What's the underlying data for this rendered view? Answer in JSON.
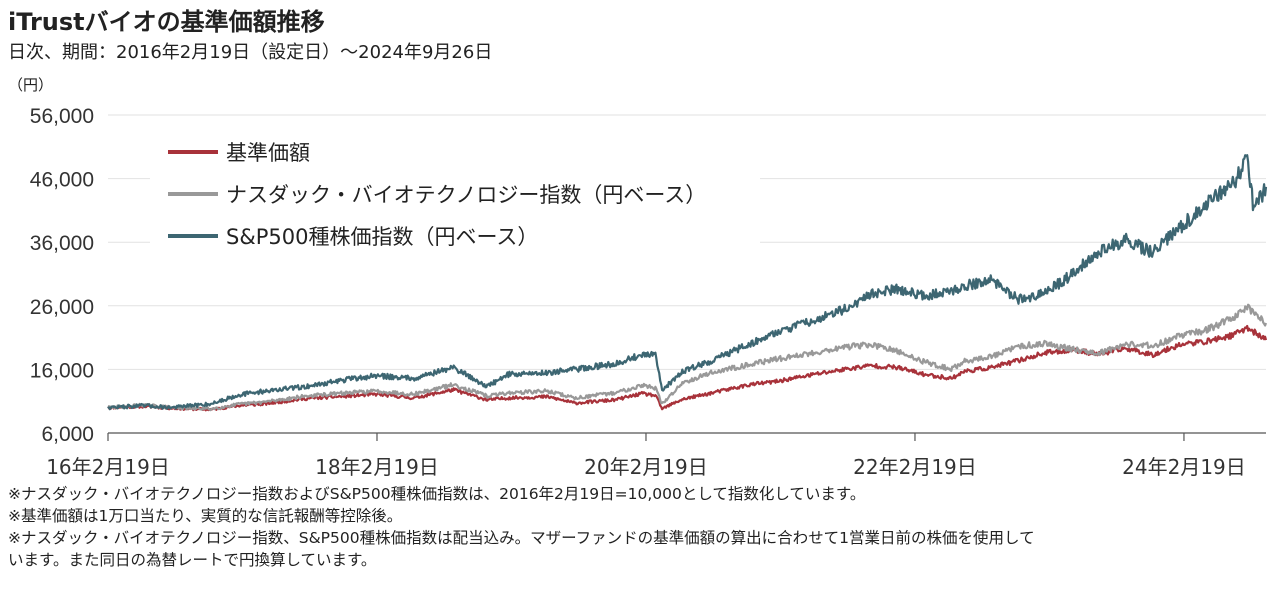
{
  "title": "iTrustバイオの基準価額推移",
  "subtitle": "日次、期間：2016年2月19日（設定日）～2024年9月26日",
  "unit_label": "（円）",
  "notes": [
    "※ナスダック・バイオテクノロジー指数およびS&P500種株価指数は、2016年2月19日=10,000として指数化しています。",
    "※基準価額は1万口当たり、実質的な信託報酬等控除後。",
    "※ナスダック・バイオテクノロジー指数、S&P500種株価指数は配当込み。マザーファンドの基準価額の算出に合わせて1営業日前の株価を使用して",
    "います。また同日の為替レートで円換算しています。"
  ],
  "chart_data": {
    "type": "line",
    "ylim": [
      6000,
      56000
    ],
    "xlim": [
      2016.13,
      2024.74
    ],
    "yticks": [
      6000,
      16000,
      26000,
      36000,
      46000,
      56000
    ],
    "ytick_labels": [
      "6,000",
      "16,000",
      "26,000",
      "36,000",
      "46,000",
      "56,000"
    ],
    "xticks": [
      2016.13,
      2018.13,
      2020.13,
      2022.13,
      2024.13
    ],
    "xtick_labels": [
      "16年2月19日",
      "18年2月19日",
      "20年2月19日",
      "22年2月19日",
      "24年2月19日"
    ],
    "grid": true,
    "legend_position": "top-left",
    "series": [
      {
        "name": "基準価額",
        "color": "#a8323a",
        "x": [
          2016.13,
          2016.4,
          2016.6,
          2016.9,
          2017.1,
          2017.3,
          2017.6,
          2017.9,
          2018.13,
          2018.4,
          2018.7,
          2018.95,
          2019.1,
          2019.4,
          2019.6,
          2019.9,
          2020.1,
          2020.2,
          2020.25,
          2020.4,
          2020.6,
          2020.9,
          2021.1,
          2021.4,
          2021.6,
          2021.8,
          2022.0,
          2022.2,
          2022.4,
          2022.5,
          2022.7,
          2022.9,
          2023.1,
          2023.3,
          2023.5,
          2023.7,
          2023.9,
          2024.1,
          2024.3,
          2024.5,
          2024.6,
          2024.74
        ],
        "values": [
          10000,
          10200,
          9900,
          9700,
          10300,
          10600,
          11400,
          11800,
          12100,
          11500,
          12800,
          11200,
          11500,
          11700,
          10700,
          11200,
          12200,
          11900,
          9800,
          11300,
          12200,
          13600,
          14100,
          15300,
          16000,
          16600,
          16300,
          15200,
          14600,
          15700,
          16300,
          17400,
          18600,
          19100,
          18400,
          19300,
          18300,
          19900,
          20400,
          21400,
          22600,
          20600
        ]
      },
      {
        "name": "ナスダック・バイオテクノロジー指数（円ベース）",
        "color": "#999999",
        "x": [
          2016.13,
          2016.4,
          2016.6,
          2016.9,
          2017.1,
          2017.3,
          2017.6,
          2017.9,
          2018.13,
          2018.4,
          2018.7,
          2018.95,
          2019.1,
          2019.4,
          2019.6,
          2019.9,
          2020.1,
          2020.2,
          2020.25,
          2020.4,
          2020.6,
          2020.9,
          2021.1,
          2021.4,
          2021.6,
          2021.8,
          2022.0,
          2022.2,
          2022.4,
          2022.5,
          2022.7,
          2022.9,
          2023.1,
          2023.3,
          2023.5,
          2023.7,
          2023.9,
          2024.1,
          2024.3,
          2024.5,
          2024.6,
          2024.74
        ],
        "values": [
          10000,
          10400,
          10000,
          9800,
          10500,
          10900,
          11800,
          12300,
          12600,
          12100,
          13600,
          11800,
          12300,
          12600,
          11500,
          12300,
          13500,
          13100,
          10500,
          13900,
          15400,
          16800,
          17600,
          18700,
          19500,
          19900,
          18800,
          17200,
          16000,
          17300,
          18000,
          19600,
          20100,
          19200,
          18600,
          20000,
          19700,
          21300,
          22200,
          24200,
          25800,
          23300
        ]
      },
      {
        "name": "S&P500種株価指数（円ベース）",
        "color": "#3d6672",
        "x": [
          2016.13,
          2016.4,
          2016.6,
          2016.9,
          2017.1,
          2017.3,
          2017.6,
          2017.9,
          2018.13,
          2018.4,
          2018.7,
          2018.95,
          2019.1,
          2019.4,
          2019.6,
          2019.9,
          2020.1,
          2020.2,
          2020.25,
          2020.4,
          2020.6,
          2020.9,
          2021.1,
          2021.4,
          2021.6,
          2021.8,
          2022.0,
          2022.2,
          2022.4,
          2022.5,
          2022.7,
          2022.9,
          2023.1,
          2023.3,
          2023.5,
          2023.7,
          2023.9,
          2024.1,
          2024.3,
          2024.5,
          2024.6,
          2024.65,
          2024.74
        ],
        "values": [
          10000,
          10300,
          10000,
          10600,
          12000,
          12600,
          13300,
          14400,
          15000,
          14600,
          16300,
          13300,
          15200,
          15500,
          16000,
          16900,
          18300,
          18200,
          12700,
          15700,
          17200,
          20000,
          21800,
          23900,
          25400,
          27800,
          28700,
          27600,
          28200,
          29200,
          30000,
          27000,
          28000,
          31000,
          34600,
          36300,
          34300,
          38300,
          42000,
          45300,
          49200,
          41000,
          44700
        ]
      }
    ]
  }
}
